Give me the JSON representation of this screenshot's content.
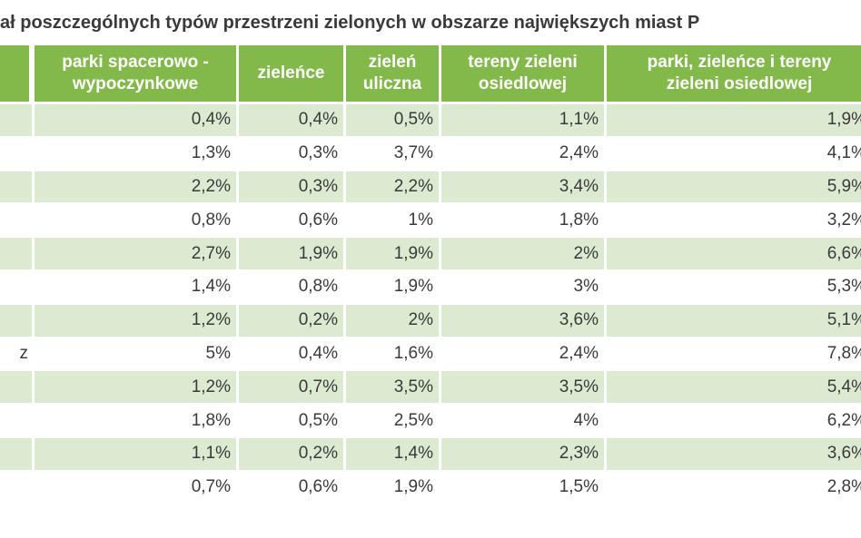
{
  "title": "ał poszczególnych typów przestrzeni zielonych w obszarze największych miast P",
  "table": {
    "columns": [
      "parki spacerowo -\nwypoczynkowe",
      "zieleńce",
      "zieleń\nuliczna",
      "tereny zieleni\nosiedlowej",
      "parki, zieleńce i tereny\nzieleni osiedlowej"
    ],
    "rows": [
      {
        "values": [
          "0,4%",
          "0,4%",
          "0,5%",
          "1,1%",
          "1,9%"
        ]
      },
      {
        "values": [
          "1,3%",
          "0,3%",
          "3,7%",
          "2,4%",
          "4,1%"
        ]
      },
      {
        "values": [
          "2,2%",
          "0,3%",
          "2,2%",
          "3,4%",
          "5,9%"
        ]
      },
      {
        "values": [
          "0,8%",
          "0,6%",
          "1%",
          "1,8%",
          "3,2%"
        ]
      },
      {
        "values": [
          "2,7%",
          "1,9%",
          "1,9%",
          "2%",
          "6,6%"
        ]
      },
      {
        "values": [
          "1,4%",
          "0,8%",
          "1,9%",
          "3%",
          "5,3%"
        ]
      },
      {
        "values": [
          "1,2%",
          "0,2%",
          "2%",
          "3,6%",
          "5,1%"
        ]
      },
      {
        "label": "z",
        "values": [
          "5%",
          "0,4%",
          "1,6%",
          "2,4%",
          "7,8%"
        ]
      },
      {
        "values": [
          "1,2%",
          "0,7%",
          "3,5%",
          "3,5%",
          "5,4%"
        ]
      },
      {
        "values": [
          "1,8%",
          "0,5%",
          "2,5%",
          "4%",
          "6,2%"
        ]
      },
      {
        "values": [
          "1,1%",
          "0,2%",
          "1,4%",
          "2,3%",
          "3,6%"
        ]
      },
      {
        "values": [
          "0,7%",
          "0,6%",
          "1,9%",
          "1,5%",
          "2,8%"
        ]
      }
    ]
  }
}
